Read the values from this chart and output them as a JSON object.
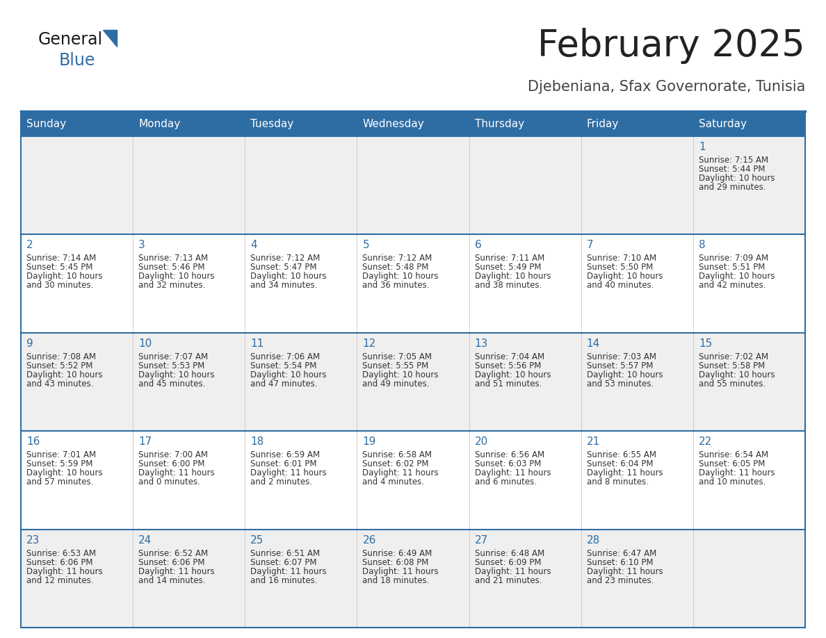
{
  "title": "February 2025",
  "subtitle": "Djebeniana, Sfax Governorate, Tunisia",
  "days_of_week": [
    "Sunday",
    "Monday",
    "Tuesday",
    "Wednesday",
    "Thursday",
    "Friday",
    "Saturday"
  ],
  "header_bg": "#2E6DA4",
  "header_text": "#FFFFFF",
  "cell_bg_even": "#EFEFEF",
  "cell_bg_odd": "#FFFFFF",
  "border_color": "#2E6DA4",
  "title_color": "#222222",
  "subtitle_color": "#444444",
  "day_number_color": "#2E6DA4",
  "cell_text_color": "#333333",
  "calendar_data": [
    {
      "day": 1,
      "col": 6,
      "row": 0,
      "sunrise": "7:15 AM",
      "sunset": "5:44 PM",
      "daylight_h": "10 hours",
      "daylight_m": "and 29 minutes."
    },
    {
      "day": 2,
      "col": 0,
      "row": 1,
      "sunrise": "7:14 AM",
      "sunset": "5:45 PM",
      "daylight_h": "10 hours",
      "daylight_m": "and 30 minutes."
    },
    {
      "day": 3,
      "col": 1,
      "row": 1,
      "sunrise": "7:13 AM",
      "sunset": "5:46 PM",
      "daylight_h": "10 hours",
      "daylight_m": "and 32 minutes."
    },
    {
      "day": 4,
      "col": 2,
      "row": 1,
      "sunrise": "7:12 AM",
      "sunset": "5:47 PM",
      "daylight_h": "10 hours",
      "daylight_m": "and 34 minutes."
    },
    {
      "day": 5,
      "col": 3,
      "row": 1,
      "sunrise": "7:12 AM",
      "sunset": "5:48 PM",
      "daylight_h": "10 hours",
      "daylight_m": "and 36 minutes."
    },
    {
      "day": 6,
      "col": 4,
      "row": 1,
      "sunrise": "7:11 AM",
      "sunset": "5:49 PM",
      "daylight_h": "10 hours",
      "daylight_m": "and 38 minutes."
    },
    {
      "day": 7,
      "col": 5,
      "row": 1,
      "sunrise": "7:10 AM",
      "sunset": "5:50 PM",
      "daylight_h": "10 hours",
      "daylight_m": "and 40 minutes."
    },
    {
      "day": 8,
      "col": 6,
      "row": 1,
      "sunrise": "7:09 AM",
      "sunset": "5:51 PM",
      "daylight_h": "10 hours",
      "daylight_m": "and 42 minutes."
    },
    {
      "day": 9,
      "col": 0,
      "row": 2,
      "sunrise": "7:08 AM",
      "sunset": "5:52 PM",
      "daylight_h": "10 hours",
      "daylight_m": "and 43 minutes."
    },
    {
      "day": 10,
      "col": 1,
      "row": 2,
      "sunrise": "7:07 AM",
      "sunset": "5:53 PM",
      "daylight_h": "10 hours",
      "daylight_m": "and 45 minutes."
    },
    {
      "day": 11,
      "col": 2,
      "row": 2,
      "sunrise": "7:06 AM",
      "sunset": "5:54 PM",
      "daylight_h": "10 hours",
      "daylight_m": "and 47 minutes."
    },
    {
      "day": 12,
      "col": 3,
      "row": 2,
      "sunrise": "7:05 AM",
      "sunset": "5:55 PM",
      "daylight_h": "10 hours",
      "daylight_m": "and 49 minutes."
    },
    {
      "day": 13,
      "col": 4,
      "row": 2,
      "sunrise": "7:04 AM",
      "sunset": "5:56 PM",
      "daylight_h": "10 hours",
      "daylight_m": "and 51 minutes."
    },
    {
      "day": 14,
      "col": 5,
      "row": 2,
      "sunrise": "7:03 AM",
      "sunset": "5:57 PM",
      "daylight_h": "10 hours",
      "daylight_m": "and 53 minutes."
    },
    {
      "day": 15,
      "col": 6,
      "row": 2,
      "sunrise": "7:02 AM",
      "sunset": "5:58 PM",
      "daylight_h": "10 hours",
      "daylight_m": "and 55 minutes."
    },
    {
      "day": 16,
      "col": 0,
      "row": 3,
      "sunrise": "7:01 AM",
      "sunset": "5:59 PM",
      "daylight_h": "10 hours",
      "daylight_m": "and 57 minutes."
    },
    {
      "day": 17,
      "col": 1,
      "row": 3,
      "sunrise": "7:00 AM",
      "sunset": "6:00 PM",
      "daylight_h": "11 hours",
      "daylight_m": "and 0 minutes."
    },
    {
      "day": 18,
      "col": 2,
      "row": 3,
      "sunrise": "6:59 AM",
      "sunset": "6:01 PM",
      "daylight_h": "11 hours",
      "daylight_m": "and 2 minutes."
    },
    {
      "day": 19,
      "col": 3,
      "row": 3,
      "sunrise": "6:58 AM",
      "sunset": "6:02 PM",
      "daylight_h": "11 hours",
      "daylight_m": "and 4 minutes."
    },
    {
      "day": 20,
      "col": 4,
      "row": 3,
      "sunrise": "6:56 AM",
      "sunset": "6:03 PM",
      "daylight_h": "11 hours",
      "daylight_m": "and 6 minutes."
    },
    {
      "day": 21,
      "col": 5,
      "row": 3,
      "sunrise": "6:55 AM",
      "sunset": "6:04 PM",
      "daylight_h": "11 hours",
      "daylight_m": "and 8 minutes."
    },
    {
      "day": 22,
      "col": 6,
      "row": 3,
      "sunrise": "6:54 AM",
      "sunset": "6:05 PM",
      "daylight_h": "11 hours",
      "daylight_m": "and 10 minutes."
    },
    {
      "day": 23,
      "col": 0,
      "row": 4,
      "sunrise": "6:53 AM",
      "sunset": "6:06 PM",
      "daylight_h": "11 hours",
      "daylight_m": "and 12 minutes."
    },
    {
      "day": 24,
      "col": 1,
      "row": 4,
      "sunrise": "6:52 AM",
      "sunset": "6:06 PM",
      "daylight_h": "11 hours",
      "daylight_m": "and 14 minutes."
    },
    {
      "day": 25,
      "col": 2,
      "row": 4,
      "sunrise": "6:51 AM",
      "sunset": "6:07 PM",
      "daylight_h": "11 hours",
      "daylight_m": "and 16 minutes."
    },
    {
      "day": 26,
      "col": 3,
      "row": 4,
      "sunrise": "6:49 AM",
      "sunset": "6:08 PM",
      "daylight_h": "11 hours",
      "daylight_m": "and 18 minutes."
    },
    {
      "day": 27,
      "col": 4,
      "row": 4,
      "sunrise": "6:48 AM",
      "sunset": "6:09 PM",
      "daylight_h": "11 hours",
      "daylight_m": "and 21 minutes."
    },
    {
      "day": 28,
      "col": 5,
      "row": 4,
      "sunrise": "6:47 AM",
      "sunset": "6:10 PM",
      "daylight_h": "11 hours",
      "daylight_m": "and 23 minutes."
    }
  ]
}
